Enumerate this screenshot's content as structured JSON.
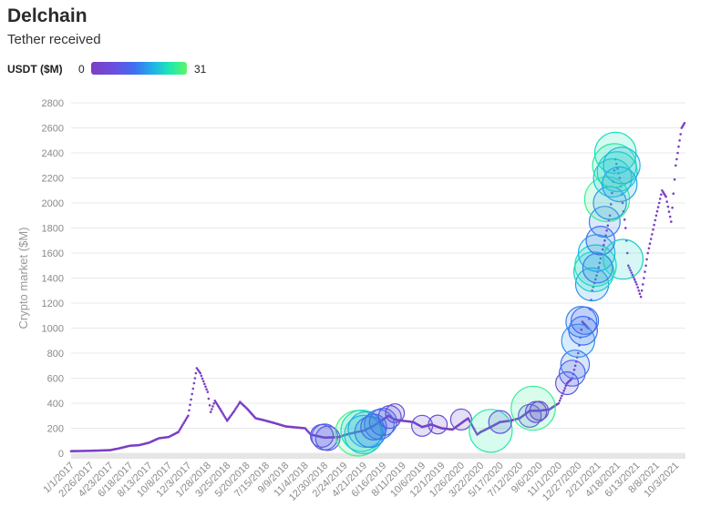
{
  "header": {
    "title": "Delchain",
    "subtitle": "Tether received"
  },
  "legend": {
    "label": "USDT ($M)",
    "min": "0",
    "max": "31",
    "colors": [
      "#7b3fc4",
      "#3f6ff0",
      "#1fb2e8",
      "#1ee8b0",
      "#5cf56a"
    ]
  },
  "chart_data": {
    "type": "scatter",
    "title": "Delchain",
    "subtitle": "Tether received",
    "xlabel": "",
    "ylabel": "Crypto market ($M)",
    "ylim": [
      0,
      2800
    ],
    "xlim": [
      "2017-01-01",
      "2021-10-31"
    ],
    "grid": true,
    "yticks": [
      0,
      200,
      400,
      600,
      800,
      1000,
      1200,
      1400,
      1600,
      1800,
      2000,
      2200,
      2400,
      2600,
      2800
    ],
    "xticks": [
      "1/1/2017",
      "2/26/2017",
      "4/23/2017",
      "6/18/2017",
      "8/13/2017",
      "10/8/2017",
      "12/3/2017",
      "1/28/2018",
      "3/25/2018",
      "5/20/2018",
      "7/15/2018",
      "9/9/2018",
      "11/4/2018",
      "12/30/2018",
      "2/24/2019",
      "4/21/2019",
      "6/16/2019",
      "8/11/2019",
      "10/6/2019",
      "12/1/2019",
      "1/26/2020",
      "3/22/2020",
      "5/17/2020",
      "7/12/2020",
      "9/6/2020",
      "11/1/2020",
      "12/27/2020",
      "2/21/2021",
      "4/18/2021",
      "6/13/2021",
      "8/8/2021",
      "10/3/2021"
    ],
    "color_scale": {
      "label": "USDT ($M)",
      "min": 0,
      "max": 31
    },
    "market_series": [
      [
        "2017-01-01",
        17
      ],
      [
        "2017-02-26",
        20
      ],
      [
        "2017-04-23",
        25
      ],
      [
        "2017-05-20",
        40
      ],
      [
        "2017-06-18",
        60
      ],
      [
        "2017-07-15",
        65
      ],
      [
        "2017-08-13",
        85
      ],
      [
        "2017-09-10",
        120
      ],
      [
        "2017-10-08",
        130
      ],
      [
        "2017-11-05",
        170
      ],
      [
        "2017-12-03",
        300
      ],
      [
        "2017-12-20",
        560
      ],
      [
        "2017-12-28",
        680
      ],
      [
        "2018-01-07",
        640
      ],
      [
        "2018-01-28",
        490
      ],
      [
        "2018-02-06",
        330
      ],
      [
        "2018-02-18",
        420
      ],
      [
        "2018-03-10",
        330
      ],
      [
        "2018-03-25",
        260
      ],
      [
        "2018-04-15",
        340
      ],
      [
        "2018-05-01",
        410
      ],
      [
        "2018-05-20",
        360
      ],
      [
        "2018-06-15",
        280
      ],
      [
        "2018-07-15",
        260
      ],
      [
        "2018-08-10",
        240
      ],
      [
        "2018-09-09",
        215
      ],
      [
        "2018-10-15",
        205
      ],
      [
        "2018-11-04",
        200
      ],
      [
        "2018-11-20",
        150
      ],
      [
        "2018-12-30",
        125
      ],
      [
        "2019-02-10",
        130
      ],
      [
        "2019-02-24",
        145
      ],
      [
        "2019-04-01",
        170
      ],
      [
        "2019-04-21",
        180
      ],
      [
        "2019-05-20",
        220
      ],
      [
        "2019-06-16",
        270
      ],
      [
        "2019-07-01",
        300
      ],
      [
        "2019-07-20",
        270
      ],
      [
        "2019-08-11",
        260
      ],
      [
        "2019-09-10",
        250
      ],
      [
        "2019-10-06",
        210
      ],
      [
        "2019-11-01",
        230
      ],
      [
        "2019-12-01",
        200
      ],
      [
        "2020-01-01",
        190
      ],
      [
        "2020-01-26",
        240
      ],
      [
        "2020-02-15",
        280
      ],
      [
        "2020-03-12",
        150
      ],
      [
        "2020-03-22",
        170
      ],
      [
        "2020-04-20",
        210
      ],
      [
        "2020-05-17",
        250
      ],
      [
        "2020-06-15",
        260
      ],
      [
        "2020-07-12",
        280
      ],
      [
        "2020-08-10",
        340
      ],
      [
        "2020-09-06",
        340
      ],
      [
        "2020-10-05",
        350
      ],
      [
        "2020-11-01",
        400
      ],
      [
        "2020-11-25",
        560
      ],
      [
        "2020-12-10",
        600
      ],
      [
        "2020-12-27",
        800
      ],
      [
        "2021-01-08",
        1050
      ],
      [
        "2021-01-25",
        1000
      ],
      [
        "2021-02-05",
        1300
      ],
      [
        "2021-02-21",
        1450
      ],
      [
        "2021-03-13",
        1700
      ],
      [
        "2021-03-28",
        1900
      ],
      [
        "2021-04-13",
        2350
      ],
      [
        "2021-04-25",
        2200
      ],
      [
        "2021-05-12",
        1800
      ],
      [
        "2021-05-20",
        1500
      ],
      [
        "2021-06-13",
        1350
      ],
      [
        "2021-06-25",
        1250
      ],
      [
        "2021-07-15",
        1600
      ],
      [
        "2021-08-08",
        1900
      ],
      [
        "2021-08-25",
        2100
      ],
      [
        "2021-09-05",
        2050
      ],
      [
        "2021-09-20",
        1850
      ],
      [
        "2021-10-03",
        2300
      ],
      [
        "2021-10-20",
        2600
      ],
      [
        "2021-10-31",
        2650
      ]
    ],
    "bubbles": [
      {
        "date": "2018-12-30",
        "y": 130,
        "usdt": 6
      },
      {
        "date": "2019-01-08",
        "y": 120,
        "usdt": 5
      },
      {
        "date": "2018-12-22",
        "y": 140,
        "usdt": 4
      },
      {
        "date": "2019-04-05",
        "y": 160,
        "usdt": 28
      },
      {
        "date": "2019-04-15",
        "y": 180,
        "usdt": 22
      },
      {
        "date": "2019-04-21",
        "y": 150,
        "usdt": 18
      },
      {
        "date": "2019-04-28",
        "y": 190,
        "usdt": 15
      },
      {
        "date": "2019-05-10",
        "y": 170,
        "usdt": 10
      },
      {
        "date": "2019-05-20",
        "y": 210,
        "usdt": 6
      },
      {
        "date": "2019-06-05",
        "y": 230,
        "usdt": 9
      },
      {
        "date": "2019-06-16",
        "y": 250,
        "usdt": 7
      },
      {
        "date": "2019-07-05",
        "y": 290,
        "usdt": 4
      },
      {
        "date": "2019-07-20",
        "y": 320,
        "usdt": 2
      },
      {
        "date": "2019-10-06",
        "y": 220,
        "usdt": 3
      },
      {
        "date": "2019-11-20",
        "y": 230,
        "usdt": 2
      },
      {
        "date": "2020-01-26",
        "y": 270,
        "usdt": 3
      },
      {
        "date": "2020-04-20",
        "y": 180,
        "usdt": 24
      },
      {
        "date": "2020-05-17",
        "y": 250,
        "usdt": 4
      },
      {
        "date": "2020-08-10",
        "y": 300,
        "usdt": 4
      },
      {
        "date": "2020-08-20",
        "y": 360,
        "usdt": 26
      },
      {
        "date": "2020-08-28",
        "y": 330,
        "usdt": 3
      },
      {
        "date": "2020-09-06",
        "y": 340,
        "usdt": 2
      },
      {
        "date": "2020-11-25",
        "y": 560,
        "usdt": 4
      },
      {
        "date": "2020-12-10",
        "y": 640,
        "usdt": 6
      },
      {
        "date": "2020-12-18",
        "y": 710,
        "usdt": 8
      },
      {
        "date": "2020-12-27",
        "y": 900,
        "usdt": 12
      },
      {
        "date": "2021-01-05",
        "y": 1050,
        "usdt": 10
      },
      {
        "date": "2021-01-10",
        "y": 980,
        "usdt": 8
      },
      {
        "date": "2021-01-15",
        "y": 1060,
        "usdt": 7
      },
      {
        "date": "2021-02-05",
        "y": 1350,
        "usdt": 12
      },
      {
        "date": "2021-02-10",
        "y": 1450,
        "usdt": 20
      },
      {
        "date": "2021-02-15",
        "y": 1500,
        "usdt": 22
      },
      {
        "date": "2021-02-18",
        "y": 1600,
        "usdt": 16
      },
      {
        "date": "2021-02-21",
        "y": 1480,
        "usdt": 9
      },
      {
        "date": "2021-03-01",
        "y": 1700,
        "usdt": 8
      },
      {
        "date": "2021-03-13",
        "y": 1850,
        "usdt": 10
      },
      {
        "date": "2021-03-20",
        "y": 2030,
        "usdt": 27
      },
      {
        "date": "2021-03-28",
        "y": 2000,
        "usdt": 12
      },
      {
        "date": "2021-04-05",
        "y": 2200,
        "usdt": 18
      },
      {
        "date": "2021-04-10",
        "y": 2300,
        "usdt": 25
      },
      {
        "date": "2021-04-13",
        "y": 2400,
        "usdt": 22
      },
      {
        "date": "2021-04-18",
        "y": 2250,
        "usdt": 20
      },
      {
        "date": "2021-04-25",
        "y": 2150,
        "usdt": 14
      },
      {
        "date": "2021-05-01",
        "y": 2300,
        "usdt": 16
      },
      {
        "date": "2021-05-05",
        "y": 1550,
        "usdt": 20
      }
    ]
  }
}
